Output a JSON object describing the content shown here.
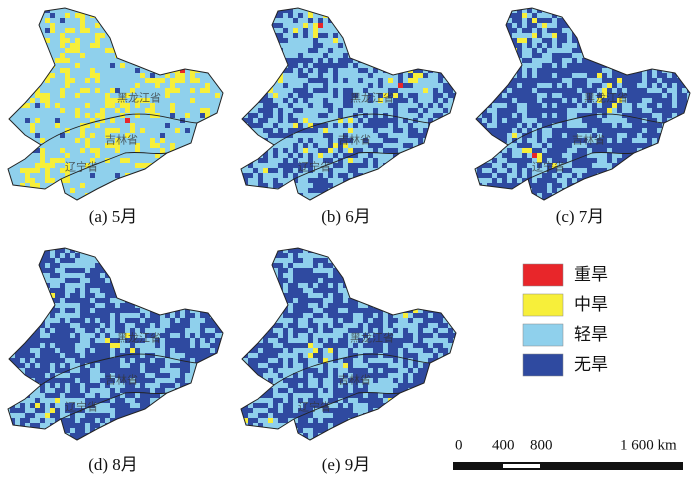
{
  "panels": [
    {
      "caption": "(a) 5月"
    },
    {
      "caption": "(b) 6月"
    },
    {
      "caption": "(c) 7月"
    },
    {
      "caption": "(d) 8月"
    },
    {
      "caption": "(e) 9月"
    }
  ],
  "provinces": [
    "黑龙江省",
    "吉林省",
    "辽宁省"
  ],
  "legend": [
    {
      "label": "重旱",
      "color": "#e8262a"
    },
    {
      "label": "中旱",
      "color": "#f7ef3a"
    },
    {
      "label": "轻旱",
      "color": "#8fd0ec"
    },
    {
      "label": "无旱",
      "color": "#2f4aa0"
    }
  ],
  "scale_bar": {
    "labels": [
      "0",
      "400",
      "800",
      "1 600 km"
    ]
  }
}
